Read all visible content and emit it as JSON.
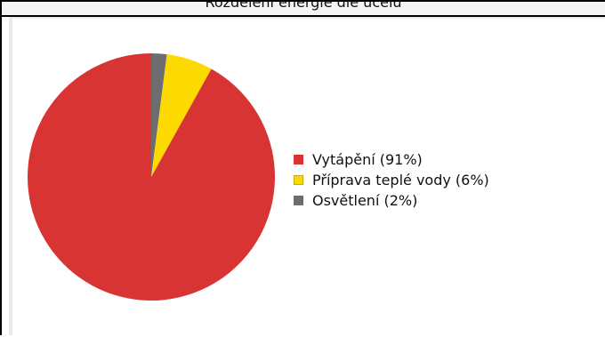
{
  "window": {
    "title": "Rozdělení energie dle účelu"
  },
  "chart_data": {
    "type": "pie",
    "categories": [
      "Vytápění",
      "Příprava teplé vody",
      "Osvětlení"
    ],
    "values": [
      91,
      6,
      2
    ],
    "colors": [
      "#d93434",
      "#fcda00",
      "#6d6d6d"
    ],
    "legend_labels": [
      "Vytápění (91%)",
      "Příprava teplé vody (6%)",
      "Osvětlení (2%)"
    ],
    "legend_position": "right"
  }
}
